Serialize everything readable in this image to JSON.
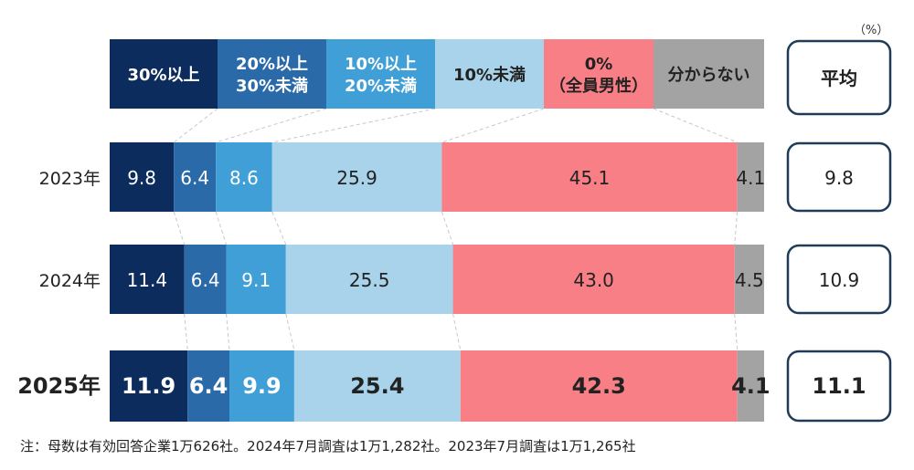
{
  "unit_label": "（%）",
  "average_header": "平均",
  "note": "注：母数は有効回答企業1万626社。2024年7月調査は1万1,282社。2023年7月調査は1万1,265社",
  "chart_data": {
    "type": "bar",
    "orientation": "horizontal",
    "stacked": true,
    "legend_placement": "top",
    "categories": [
      "2023年",
      "2024年",
      "2025年"
    ],
    "series": [
      {
        "name": "30%以上",
        "label_lines": [
          "30%以上"
        ],
        "color": "#0d2c5e",
        "text_color": "#ffffff",
        "values": [
          9.8,
          11.4,
          11.9
        ]
      },
      {
        "name": "20%以上 30%未満",
        "label_lines": [
          "20%以上",
          "30%未満"
        ],
        "color": "#2a6aa8",
        "text_color": "#ffffff",
        "values": [
          6.4,
          6.4,
          6.4
        ]
      },
      {
        "name": "10%以上 20%未満",
        "label_lines": [
          "10%以上",
          "20%未満"
        ],
        "color": "#3f9fd6",
        "text_color": "#ffffff",
        "values": [
          8.6,
          9.1,
          9.9
        ]
      },
      {
        "name": "10%未満",
        "label_lines": [
          "10%未満"
        ],
        "color": "#a8d3ea",
        "text_color": "#222222",
        "values": [
          25.9,
          25.5,
          25.4
        ]
      },
      {
        "name": "0%（全員男性）",
        "label_lines": [
          "0%",
          "（全員男性）"
        ],
        "color": "#f87f86",
        "text_color": "#222222",
        "values": [
          45.1,
          43.0,
          42.3
        ]
      },
      {
        "name": "分からない",
        "label_lines": [
          "分からない"
        ],
        "color": "#a3a3a3",
        "text_color": "#222222",
        "values": [
          4.1,
          4.5,
          4.1
        ]
      }
    ],
    "value_labels": [
      [
        "9.8",
        "6.4",
        "8.6",
        "25.9",
        "45.1",
        "4.1"
      ],
      [
        "11.4",
        "6.4",
        "9.1",
        "25.5",
        "43.0",
        "4.5"
      ],
      [
        "11.9",
        "6.4",
        "9.9",
        "25.4",
        "42.3",
        "4.1"
      ]
    ],
    "averages": [
      "9.8",
      "10.9",
      "11.1"
    ],
    "emphasized_category": "2025年"
  }
}
